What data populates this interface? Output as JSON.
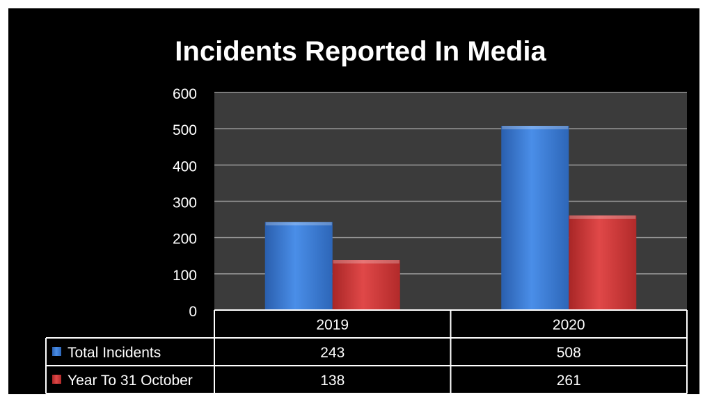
{
  "chart_data": {
    "type": "bar",
    "title": "Incidents Reported In Media",
    "categories": [
      "2019",
      "2020"
    ],
    "series": [
      {
        "name": "Total Incidents",
        "values": [
          243,
          508
        ],
        "color": "#3f7fd6"
      },
      {
        "name": "Year To 31 October",
        "values": [
          138,
          261
        ],
        "color": "#d23b3b"
      }
    ],
    "ylim": [
      0,
      600
    ],
    "yticks": [
      "0",
      "100",
      "200",
      "300",
      "400",
      "500",
      "600"
    ],
    "grid": true,
    "legend": "data-table",
    "plot_background": "#3b3b3b"
  }
}
